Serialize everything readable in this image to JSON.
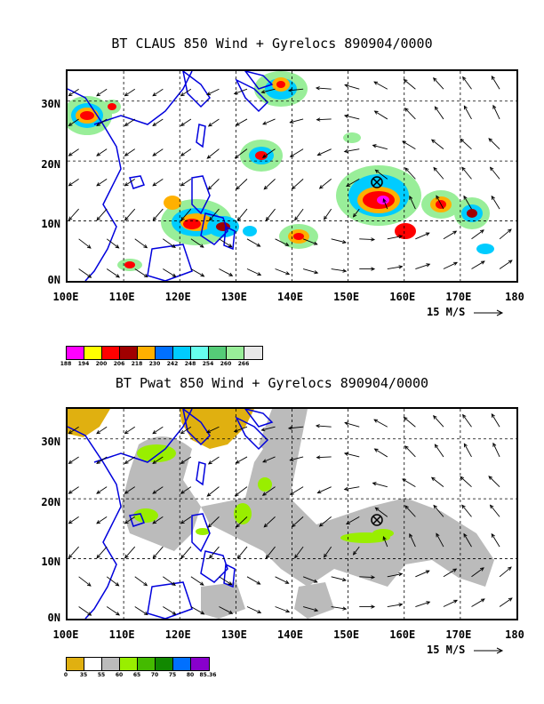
{
  "panel1": {
    "title": "BT CLAUS 850 Wind + Gyrelocs 890904/0000",
    "y_labels": [
      "30N",
      "20N",
      "10N",
      "0N"
    ],
    "x_labels": [
      "100E",
      "110E",
      "120E",
      "130E",
      "140E",
      "150E",
      "160E",
      "170E",
      "180"
    ],
    "ref_vector": "15 M/S",
    "colorbar": {
      "labels": [
        "188",
        "194",
        "200",
        "206",
        "218",
        "230",
        "242",
        "248",
        "254",
        "260",
        "266"
      ],
      "colors": [
        "#ff00ff",
        "#ffff00",
        "#ff0000",
        "#a00000",
        "#ffb000",
        "#0070ff",
        "#00ccff",
        "#66ffee",
        "#55cc77",
        "#99ee99",
        "#e8e8e8"
      ]
    }
  },
  "panel2": {
    "title": "BT Pwat 850 Wind + Gyrelocs 890904/0000",
    "y_labels": [
      "30N",
      "20N",
      "10N",
      "0N"
    ],
    "x_labels": [
      "100E",
      "110E",
      "120E",
      "130E",
      "140E",
      "150E",
      "160E",
      "170E",
      "180"
    ],
    "ref_vector": "15 M/S",
    "colorbar": {
      "labels": [
        "0",
        "35",
        "55",
        "60",
        "65",
        "70",
        "75",
        "80",
        "85.36"
      ],
      "colors": [
        "#e0b010",
        "#ffffff",
        "#bbbbbb",
        "#99ee00",
        "#44bb00",
        "#118800",
        "#0070ff",
        "#8800cc"
      ]
    }
  },
  "gyre_location": "155E 17N"
}
